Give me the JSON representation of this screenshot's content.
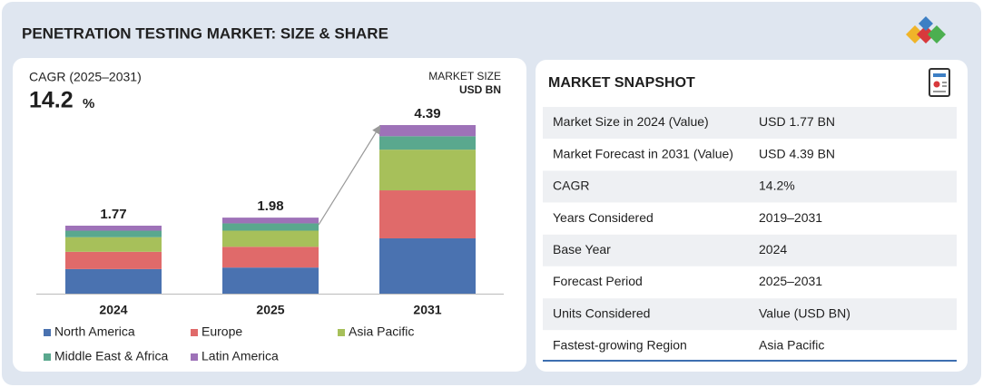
{
  "title": "PENETRATION TESTING MARKET: SIZE & SHARE",
  "cagr": {
    "label": "CAGR (2025–2031)",
    "value": "14.2",
    "unit": "%"
  },
  "unit_note": {
    "line1": "MARKET SIZE",
    "line2": "USD BN"
  },
  "chart_data": {
    "type": "bar",
    "stacked": true,
    "categories": [
      "2024",
      "2025",
      "2031"
    ],
    "totals": [
      1.77,
      1.98,
      4.39
    ],
    "series": [
      {
        "name": "North America",
        "color": "#4a72b0",
        "values": [
          0.64,
          0.68,
          1.44
        ]
      },
      {
        "name": "Europe",
        "color": "#e06a6a",
        "values": [
          0.45,
          0.54,
          1.25
        ]
      },
      {
        "name": "Asia Pacific",
        "color": "#a7c05a",
        "values": [
          0.38,
          0.42,
          1.06
        ]
      },
      {
        "name": "Middle East & Africa",
        "color": "#5aa88e",
        "values": [
          0.17,
          0.19,
          0.35
        ]
      },
      {
        "name": "Latin America",
        "color": "#9e72b8",
        "values": [
          0.13,
          0.15,
          0.29
        ]
      }
    ]
  },
  "snapshot": {
    "title": "MARKET SNAPSHOT",
    "rows": [
      [
        "Market Size in 2024 (Value)",
        "USD 1.77 BN"
      ],
      [
        "Market Forecast in 2031 (Value)",
        "USD 4.39 BN"
      ],
      [
        "CAGR",
        "14.2%"
      ],
      [
        "Years Considered",
        "2019–2031"
      ],
      [
        "Base Year",
        "2024"
      ],
      [
        "Forecast Period",
        "2025–2031"
      ],
      [
        "Units Considered",
        "Value (USD BN)"
      ],
      [
        "Fastest-growing Region",
        "Asia Pacific"
      ]
    ]
  }
}
